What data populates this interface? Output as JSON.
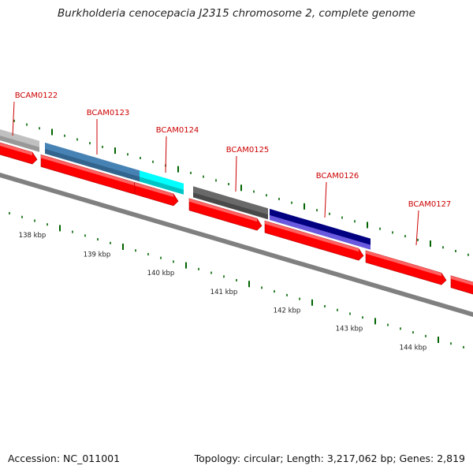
{
  "title": "Burkholderia cenocepacia J2315 chromosome 2, complete genome",
  "footer": {
    "accession": "Accession: NC_011001",
    "summary": "Topology: circular; Length: 3,217,062 bp; Genes: 2,819"
  },
  "colors": {
    "label": "#cc0000",
    "backbone": "#808080",
    "cds": "#ff0000",
    "tick": "#006400"
  },
  "genes": [
    {
      "name": "BCAM0122",
      "color": "#c0c0c0"
    },
    {
      "name": "BCAM0123",
      "color": "#4682b4"
    },
    {
      "name": "BCAM0124",
      "color": "#00ffff"
    },
    {
      "name": "BCAM0125",
      "color": "#696969"
    },
    {
      "name": "BCAM0126",
      "color": "#000080"
    },
    {
      "name": "BCAM0127",
      "color": "#ff0000"
    }
  ],
  "scale_labels": [
    "138 kbp",
    "139 kbp",
    "140 kbp",
    "141 kbp",
    "142 kbp",
    "143 kbp",
    "144 kbp"
  ]
}
